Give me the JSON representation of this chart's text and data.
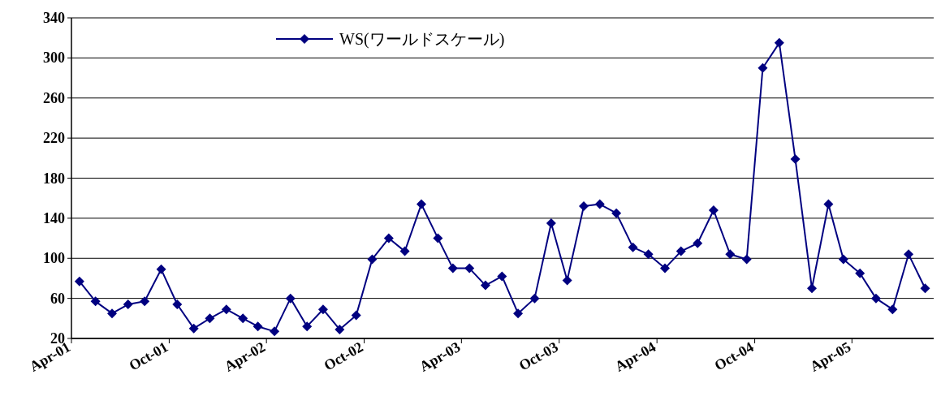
{
  "chart_data": {
    "type": "line",
    "x": [
      "2001-04-16",
      "2001-05-16",
      "2001-06-16",
      "2001-07-16",
      "2001-08-16",
      "2001-09-16",
      "2001-10-16",
      "2001-11-16",
      "2001-12-16",
      "2002-01-16",
      "2002-02-16",
      "2002-03-16",
      "2002-04-16",
      "2002-05-16",
      "2002-06-16",
      "2002-07-16",
      "2002-08-16",
      "2002-09-16",
      "2002-10-16",
      "2002-11-16",
      "2002-12-16",
      "2003-01-16",
      "2003-02-16",
      "2003-03-16",
      "2003-04-16",
      "2003-05-16",
      "2003-06-16",
      "2003-07-16",
      "2003-08-16",
      "2003-09-16",
      "2003-10-16",
      "2003-11-16",
      "2003-12-16",
      "2004-01-16",
      "2004-02-16",
      "2004-03-16",
      "2004-04-16",
      "2004-05-16",
      "2004-06-16",
      "2004-07-16",
      "2004-08-16",
      "2004-09-16",
      "2004-10-16",
      "2004-11-16",
      "2004-12-16",
      "2005-01-16",
      "2005-02-16",
      "2005-03-16",
      "2005-04-16",
      "2005-05-16",
      "2005-06-16",
      "2005-07-16",
      "2005-08-16"
    ],
    "xlim": [
      "2001-04-01",
      "2005-09-01"
    ],
    "xticks": [
      {
        "value": "2001-04-01",
        "label": "Apr-01"
      },
      {
        "value": "2001-10-01",
        "label": "Oct-01"
      },
      {
        "value": "2002-04-01",
        "label": "Apr-02"
      },
      {
        "value": "2002-10-01",
        "label": "Oct-02"
      },
      {
        "value": "2003-04-01",
        "label": "Apr-03"
      },
      {
        "value": "2003-10-01",
        "label": "Oct-03"
      },
      {
        "value": "2004-04-01",
        "label": "Apr-04"
      },
      {
        "value": "2004-10-01",
        "label": "Oct-04"
      },
      {
        "value": "2005-04-01",
        "label": "Apr-05"
      }
    ],
    "series": [
      {
        "name": "WS(ワールドスケール)",
        "color": "#000080",
        "values": [
          77,
          57,
          45,
          54,
          57,
          89,
          54,
          30,
          40,
          49,
          40,
          32,
          27,
          60,
          32,
          49,
          29,
          43,
          99,
          120,
          107,
          154,
          120,
          90,
          90,
          73,
          82,
          45,
          60,
          135,
          78,
          152,
          154,
          145,
          111,
          104,
          90,
          107,
          115,
          148,
          104,
          99,
          290,
          315,
          199,
          70,
          154,
          99,
          85,
          60,
          49,
          104,
          70
        ]
      }
    ],
    "ylim": [
      20,
      340
    ],
    "yticks": [
      20,
      60,
      100,
      140,
      180,
      220,
      260,
      300,
      340
    ],
    "grid": "y",
    "legend": "top",
    "marker": "diamond",
    "line_style": "solid"
  }
}
